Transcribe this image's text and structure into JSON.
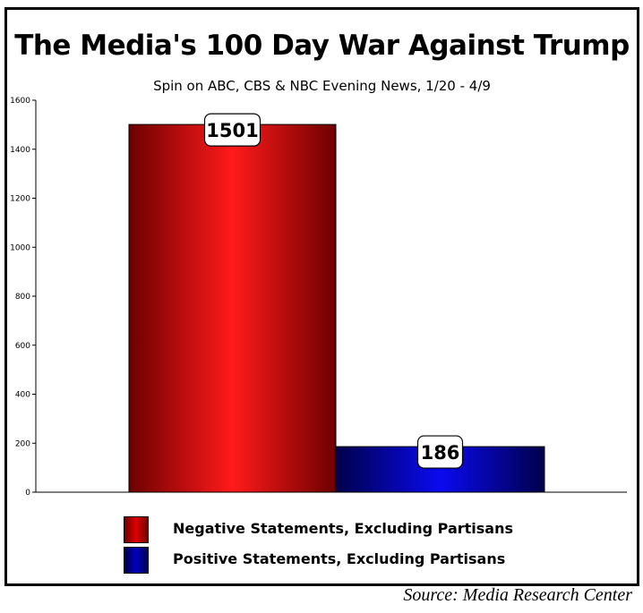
{
  "chart_data": {
    "type": "bar",
    "title": "The Media's 100 Day War Against Trump",
    "subtitle": "Spin on ABC, CBS & NBC Evening News,  1/20 - 4/9",
    "categories": [
      "Negative Statements, Excluding Partisans",
      "Positive Statements, Excluding Partisans"
    ],
    "values": [
      1501,
      186
    ],
    "data_labels": [
      "1501",
      "186"
    ],
    "colors": [
      "#e00000",
      "#0000c0"
    ],
    "ylim": [
      0,
      1600
    ],
    "yticks": [
      0,
      200,
      400,
      600,
      800,
      1000,
      1200,
      1400,
      1600
    ],
    "ytick_labels": [
      "0",
      "200",
      "400",
      "600",
      "800",
      "1000",
      "1200",
      "1400",
      "1600"
    ],
    "xlabel": "",
    "ylabel": "",
    "grid": false,
    "legend": [
      {
        "label": "Negative Statements, Excluding Partisans",
        "color": "#e00000"
      },
      {
        "label": "Positive Statements, Excluding Partisans",
        "color": "#0000c0"
      }
    ],
    "legend_position": "bottom-center"
  },
  "source": "Source: Media Research Center"
}
